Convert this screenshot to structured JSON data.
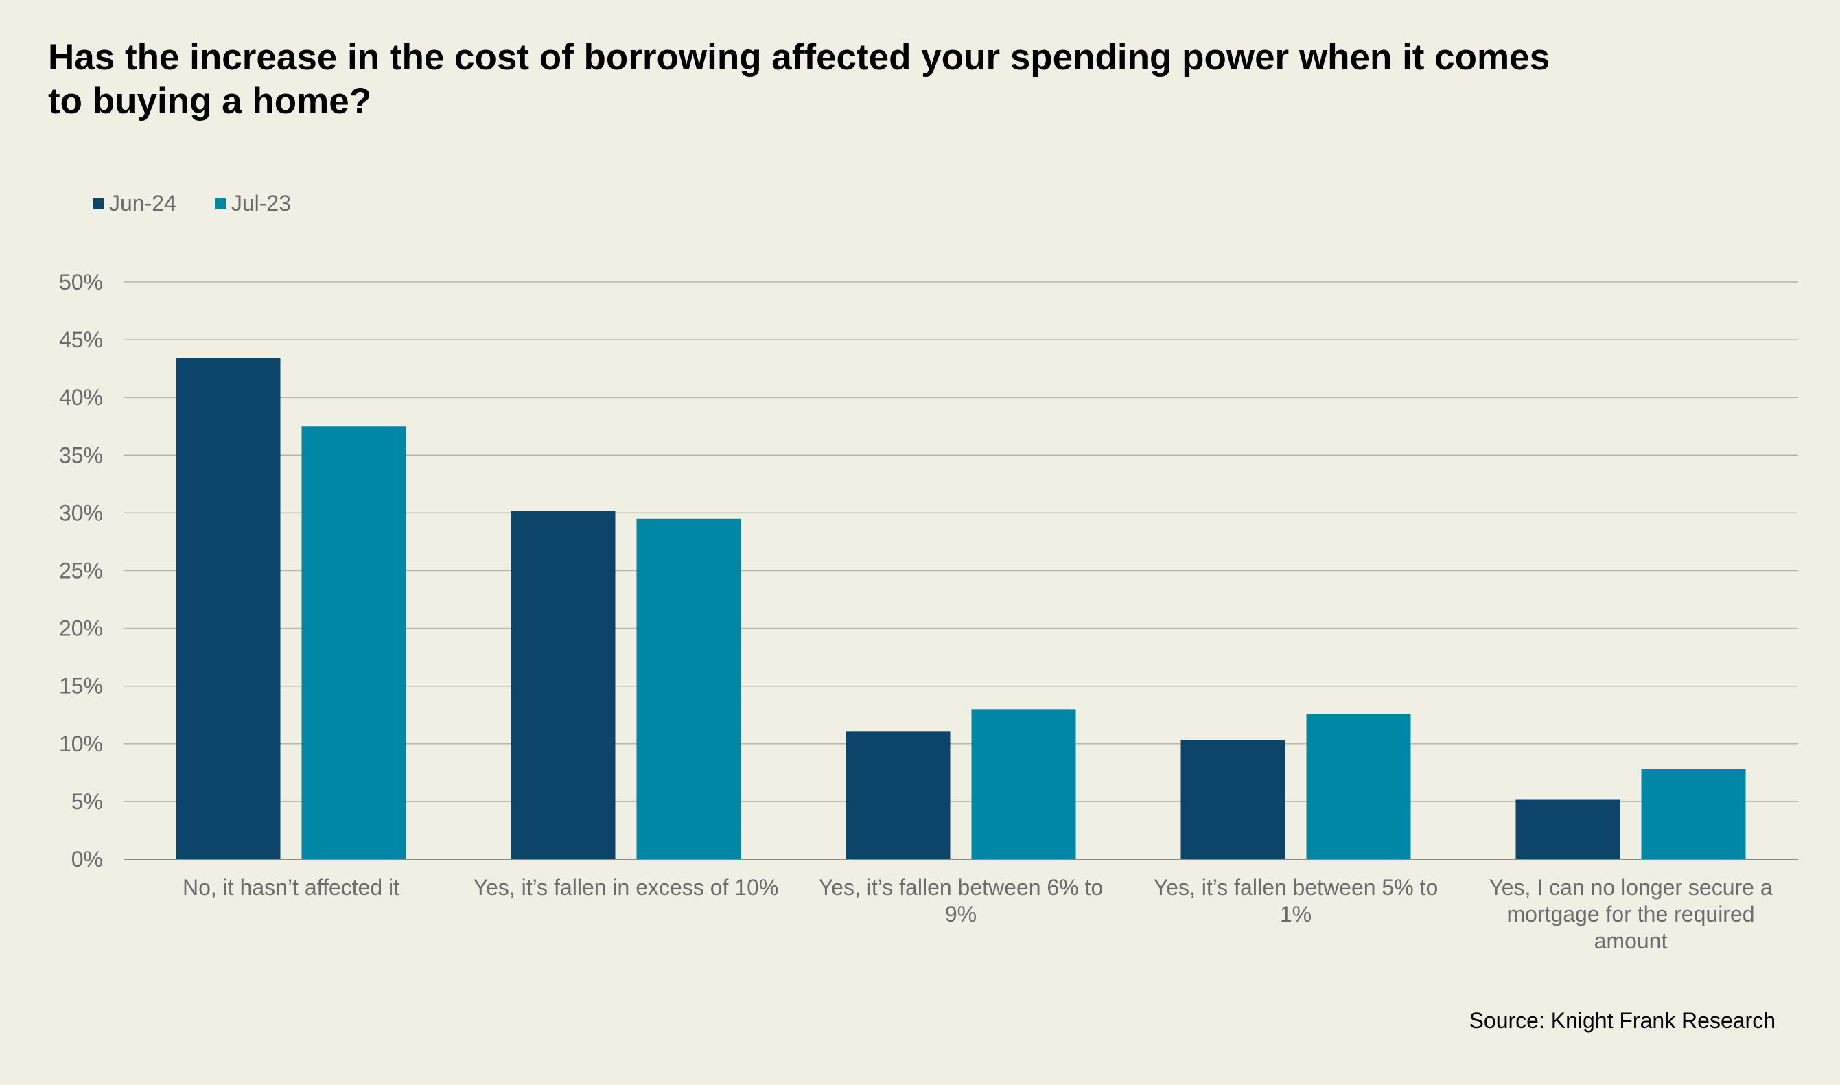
{
  "chart_data": {
    "type": "bar",
    "title": "Has the increase in the cost of borrowing affected your spending power when it comes to buying a home?",
    "categories": [
      [
        "No, it hasn’t affected it"
      ],
      [
        "Yes, it’s fallen in excess of 10%"
      ],
      [
        "Yes, it’s fallen between 6% to",
        "9%"
      ],
      [
        "Yes, it’s fallen between 5% to",
        "1%"
      ],
      [
        "Yes, I can no longer secure a",
        "mortgage for the required",
        "amount"
      ]
    ],
    "series": [
      {
        "name": "Jun-24",
        "color": "#0c4569",
        "values": [
          43.4,
          30.2,
          11.1,
          10.3,
          5.2
        ]
      },
      {
        "name": "Jul-23",
        "color": "#0087a5",
        "values": [
          37.5,
          29.5,
          13.0,
          12.6,
          7.8
        ]
      }
    ],
    "yticks": [
      "0%",
      "5%",
      "10%",
      "15%",
      "20%",
      "25%",
      "30%",
      "35%",
      "40%",
      "45%",
      "50%"
    ],
    "ylim": [
      0,
      50
    ],
    "xlabel": "",
    "ylabel": "",
    "grid": true,
    "legend_position": "top-left"
  },
  "source": "Source: Knight Frank Research"
}
